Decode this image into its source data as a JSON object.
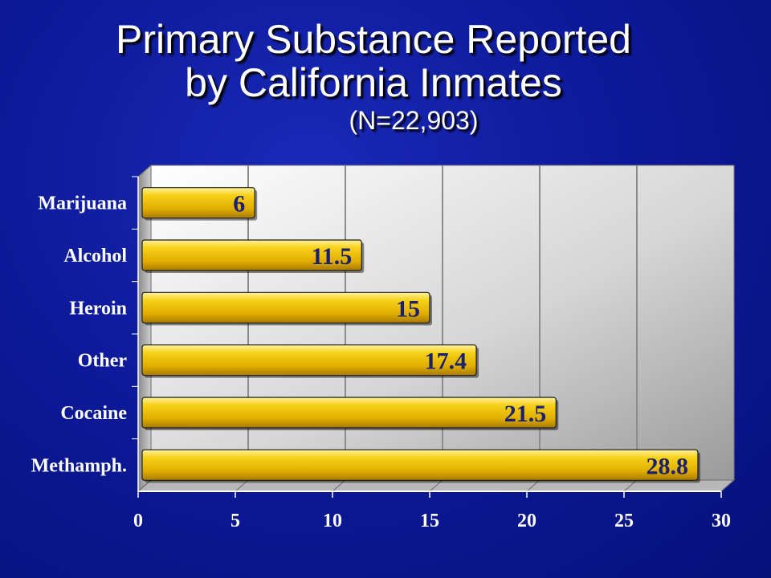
{
  "slide": {
    "title_line1": "Primary Substance Reported",
    "title_line2": "by California Inmates",
    "subtitle": "(N=22,903)"
  },
  "colors": {
    "background": "#0d1a9a",
    "bar_fill": "#f2c200",
    "plot_wall": "#d9d9d9",
    "value_label": "#1a2070",
    "text": "#ffffff"
  },
  "chart_data": {
    "type": "bar",
    "orientation": "horizontal",
    "title": "Primary Substance Reported by California Inmates",
    "subtitle": "(N=22,903)",
    "categories": [
      "Marijuana",
      "Alcohol",
      "Heroin",
      "Other",
      "Cocaine",
      "Methamph."
    ],
    "values": [
      6,
      11.5,
      15,
      17.4,
      21.5,
      28.8
    ],
    "value_labels": [
      "6",
      "11.5",
      "15",
      "17.4",
      "21.5",
      "28.8"
    ],
    "xlim": [
      0,
      30
    ],
    "xticks": [
      0,
      5,
      10,
      15,
      20,
      25,
      30
    ],
    "xtick_labels": [
      "0",
      "5",
      "10",
      "15",
      "20",
      "25",
      "30"
    ],
    "grid": true,
    "legend": "none",
    "style": "3d"
  }
}
